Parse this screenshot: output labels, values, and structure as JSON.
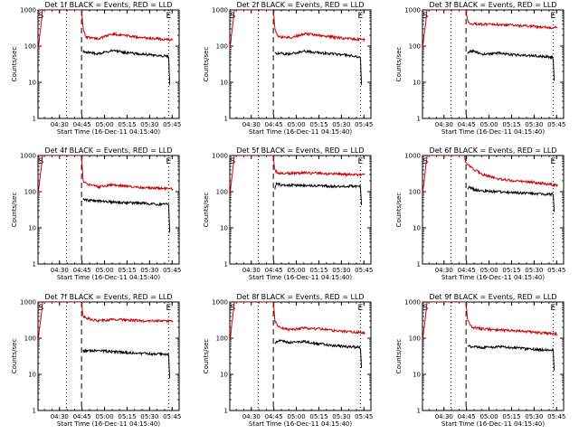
{
  "figure": {
    "colors": {
      "events": "#000000",
      "lld": "#cc0000",
      "axes": "#000000",
      "background": "#ffffff"
    },
    "y_tick_labels": [
      "1",
      "10",
      "100",
      "1000"
    ],
    "x_tick_labels": [
      "04:30",
      "04:45",
      "05:00",
      "05:15",
      "05:30",
      "05:45"
    ],
    "ylabel": "Counts/sec",
    "xlabel": "Start Time (16-Dec-11 04:15:40)"
  },
  "chart_data": [
    {
      "type": "line",
      "title": "Det 1f BLACK = Events, RED = LLD",
      "xlabel": "Start Time (16-Dec-11 04:15:40)",
      "ylabel": "Counts/sec",
      "x_unit": "minutes after 04:15:40",
      "xlim": [
        0,
        94
      ],
      "ylim": [
        1,
        1000
      ],
      "y_scale": "log",
      "markers": {
        "S": 2,
        "E": 87
      },
      "vlines": [
        {
          "x": 19,
          "style": "dotted"
        },
        {
          "x": 29,
          "style": "dashed"
        },
        {
          "x": 87,
          "style": "dotted"
        }
      ],
      "series": [
        {
          "color": "#cc0000",
          "points": [
            [
              0,
              80
            ],
            [
              2,
              400
            ],
            [
              3,
              1000
            ],
            [
              29,
              1000
            ],
            [
              30,
              300
            ],
            [
              32,
              180
            ],
            [
              40,
              160
            ],
            [
              50,
              220
            ],
            [
              60,
              190
            ],
            [
              70,
              170
            ],
            [
              80,
              160
            ],
            [
              90,
              150
            ]
          ]
        },
        {
          "color": "#000000",
          "points": [
            [
              30,
              70
            ],
            [
              40,
              62
            ],
            [
              50,
              75
            ],
            [
              60,
              65
            ],
            [
              70,
              60
            ],
            [
              80,
              55
            ],
            [
              87,
              52
            ],
            [
              88,
              5
            ]
          ]
        }
      ]
    },
    {
      "type": "line",
      "title": "Det 2f BLACK = Events, RED = LLD",
      "xlabel": "Start Time (16-Dec-11 04:15:40)",
      "ylabel": "Counts/sec",
      "x_unit": "minutes after 04:15:40",
      "xlim": [
        0,
        94
      ],
      "ylim": [
        1,
        1000
      ],
      "y_scale": "log",
      "markers": {
        "S": 2,
        "E": 87
      },
      "vlines": [
        {
          "x": 19,
          "style": "dotted"
        },
        {
          "x": 29,
          "style": "dashed"
        },
        {
          "x": 87,
          "style": "dotted"
        }
      ],
      "series": [
        {
          "color": "#cc0000",
          "points": [
            [
              0,
              80
            ],
            [
              2,
              400
            ],
            [
              3,
              1000
            ],
            [
              29,
              1000
            ],
            [
              30,
              300
            ],
            [
              32,
              180
            ],
            [
              40,
              170
            ],
            [
              50,
              220
            ],
            [
              60,
              200
            ],
            [
              70,
              175
            ],
            [
              80,
              160
            ],
            [
              90,
              150
            ]
          ]
        },
        {
          "color": "#000000",
          "points": [
            [
              30,
              65
            ],
            [
              40,
              60
            ],
            [
              50,
              72
            ],
            [
              60,
              65
            ],
            [
              70,
              60
            ],
            [
              80,
              55
            ],
            [
              87,
              50
            ],
            [
              88,
              5
            ]
          ]
        }
      ]
    },
    {
      "type": "line",
      "title": "Det 3f BLACK = Events, RED = LLD",
      "xlabel": "Start Time (16-Dec-11 04:15:40)",
      "ylabel": "Counts/sec",
      "x_unit": "minutes after 04:15:40",
      "xlim": [
        0,
        94
      ],
      "ylim": [
        1,
        1000
      ],
      "y_scale": "log",
      "markers": {
        "S": 2,
        "E": 87
      },
      "vlines": [
        {
          "x": 19,
          "style": "dotted"
        },
        {
          "x": 29,
          "style": "dashed"
        },
        {
          "x": 87,
          "style": "dotted"
        }
      ],
      "series": [
        {
          "color": "#cc0000",
          "points": [
            [
              0,
              80
            ],
            [
              2,
              400
            ],
            [
              3,
              1000
            ],
            [
              29,
              1000
            ],
            [
              30,
              500
            ],
            [
              32,
              420
            ],
            [
              40,
              400
            ],
            [
              50,
              400
            ],
            [
              60,
              380
            ],
            [
              70,
              360
            ],
            [
              80,
              340
            ],
            [
              90,
              320
            ]
          ]
        },
        {
          "color": "#000000",
          "points": [
            [
              30,
              60
            ],
            [
              32,
              75
            ],
            [
              40,
              60
            ],
            [
              50,
              65
            ],
            [
              60,
              58
            ],
            [
              70,
              55
            ],
            [
              80,
              52
            ],
            [
              87,
              50
            ],
            [
              88,
              6
            ]
          ]
        }
      ]
    },
    {
      "type": "line",
      "title": "Det 4f BLACK = Events, RED = LLD",
      "xlabel": "Start Time (16-Dec-11 04:15:40)",
      "ylabel": "Counts/sec",
      "x_unit": "minutes after 04:15:40",
      "xlim": [
        0,
        94
      ],
      "ylim": [
        1,
        1000
      ],
      "y_scale": "log",
      "markers": {
        "S": 2,
        "E": 87
      },
      "vlines": [
        {
          "x": 19,
          "style": "dotted"
        },
        {
          "x": 29,
          "style": "dashed"
        },
        {
          "x": 87,
          "style": "dotted"
        }
      ],
      "series": [
        {
          "color": "#cc0000",
          "points": [
            [
              0,
              80
            ],
            [
              2,
              400
            ],
            [
              3,
              1000
            ],
            [
              29,
              1000
            ],
            [
              30,
              200
            ],
            [
              33,
              160
            ],
            [
              40,
              135
            ],
            [
              50,
              155
            ],
            [
              60,
              140
            ],
            [
              70,
              130
            ],
            [
              80,
              125
            ],
            [
              90,
              120
            ]
          ]
        },
        {
          "color": "#000000",
          "points": [
            [
              30,
              60
            ],
            [
              40,
              55
            ],
            [
              50,
              52
            ],
            [
              60,
              50
            ],
            [
              70,
              48
            ],
            [
              80,
              45
            ],
            [
              87,
              45
            ],
            [
              88,
              4
            ]
          ]
        }
      ]
    },
    {
      "type": "line",
      "title": "Det 5f BLACK = Events, RED = LLD",
      "xlabel": "Start Time (16-Dec-11 04:15:40)",
      "ylabel": "Counts/sec",
      "x_unit": "minutes after 04:15:40",
      "xlim": [
        0,
        94
      ],
      "ylim": [
        1,
        1000
      ],
      "y_scale": "log",
      "markers": {
        "S": 2,
        "E": 87
      },
      "vlines": [
        {
          "x": 19,
          "style": "dotted"
        },
        {
          "x": 29,
          "style": "dashed"
        },
        {
          "x": 87,
          "style": "dotted"
        }
      ],
      "series": [
        {
          "color": "#cc0000",
          "points": [
            [
              0,
              80
            ],
            [
              2,
              400
            ],
            [
              3,
              1000
            ],
            [
              29,
              1000
            ],
            [
              30,
              400
            ],
            [
              32,
              330
            ],
            [
              40,
              320
            ],
            [
              50,
              330
            ],
            [
              60,
              320
            ],
            [
              70,
              310
            ],
            [
              80,
              300
            ],
            [
              90,
              290
            ]
          ]
        },
        {
          "color": "#000000",
          "points": [
            [
              30,
              120
            ],
            [
              31,
              170
            ],
            [
              35,
              150
            ],
            [
              50,
              150
            ],
            [
              60,
              145
            ],
            [
              70,
              140
            ],
            [
              80,
              140
            ],
            [
              87,
              140
            ],
            [
              88,
              30
            ]
          ]
        }
      ]
    },
    {
      "type": "line",
      "title": "Det 6f BLACK = Events, RED = LLD",
      "xlabel": "Start Time (16-Dec-11 04:15:40)",
      "ylabel": "Counts/sec",
      "x_unit": "minutes after 04:15:40",
      "xlim": [
        0,
        94
      ],
      "ylim": [
        1,
        1000
      ],
      "y_scale": "log",
      "markers": {
        "S": 2,
        "E": 87
      },
      "vlines": [
        {
          "x": 19,
          "style": "dotted"
        },
        {
          "x": 29,
          "style": "dashed"
        },
        {
          "x": 87,
          "style": "dotted"
        }
      ],
      "series": [
        {
          "color": "#cc0000",
          "points": [
            [
              0,
              80
            ],
            [
              2,
              400
            ],
            [
              3,
              1000
            ],
            [
              28,
              1000
            ],
            [
              29,
              600
            ],
            [
              35,
              400
            ],
            [
              40,
              300
            ],
            [
              50,
              230
            ],
            [
              60,
              200
            ],
            [
              70,
              190
            ],
            [
              80,
              170
            ],
            [
              90,
              150
            ]
          ]
        },
        {
          "color": "#000000",
          "points": [
            [
              30,
              110
            ],
            [
              31,
              140
            ],
            [
              35,
              110
            ],
            [
              50,
              100
            ],
            [
              60,
              95
            ],
            [
              70,
              90
            ],
            [
              80,
              85
            ],
            [
              87,
              85
            ],
            [
              88,
              20
            ]
          ]
        }
      ]
    },
    {
      "type": "line",
      "title": "Det 7f BLACK = Events, RED = LLD",
      "xlabel": "Start Time (16-Dec-11 04:15:40)",
      "ylabel": "Counts/sec",
      "x_unit": "minutes after 04:15:40",
      "xlim": [
        0,
        94
      ],
      "ylim": [
        1,
        1000
      ],
      "y_scale": "log",
      "markers": {
        "S": 2,
        "E": 87
      },
      "vlines": [
        {
          "x": 19,
          "style": "dotted"
        },
        {
          "x": 29,
          "style": "dashed"
        },
        {
          "x": 87,
          "style": "dotted"
        }
      ],
      "series": [
        {
          "color": "#cc0000",
          "points": [
            [
              0,
              80
            ],
            [
              2,
              400
            ],
            [
              3,
              1000
            ],
            [
              29,
              1000
            ],
            [
              30,
              400
            ],
            [
              35,
              330
            ],
            [
              40,
              300
            ],
            [
              50,
              330
            ],
            [
              60,
              320
            ],
            [
              70,
              300
            ],
            [
              80,
              300
            ],
            [
              90,
              300
            ]
          ]
        },
        {
          "color": "#000000",
          "points": [
            [
              30,
              45
            ],
            [
              40,
              45
            ],
            [
              50,
              42
            ],
            [
              60,
              40
            ],
            [
              70,
              38
            ],
            [
              80,
              36
            ],
            [
              87,
              36
            ],
            [
              88,
              5
            ]
          ]
        }
      ]
    },
    {
      "type": "line",
      "title": "Det 8f BLACK = Events, RED = LLD",
      "xlabel": "Start Time (16-Dec-11 04:15:40)",
      "ylabel": "Counts/sec",
      "x_unit": "minutes after 04:15:40",
      "xlim": [
        0,
        94
      ],
      "ylim": [
        1,
        1000
      ],
      "y_scale": "log",
      "markers": {
        "S": 2,
        "E": 87
      },
      "vlines": [
        {
          "x": 19,
          "style": "dotted"
        },
        {
          "x": 29,
          "style": "dashed"
        },
        {
          "x": 87,
          "style": "dotted"
        }
      ],
      "series": [
        {
          "color": "#cc0000",
          "points": [
            [
              0,
              80
            ],
            [
              2,
              400
            ],
            [
              3,
              1000
            ],
            [
              29,
              1000
            ],
            [
              30,
              300
            ],
            [
              33,
              200
            ],
            [
              40,
              170
            ],
            [
              50,
              190
            ],
            [
              60,
              180
            ],
            [
              70,
              160
            ],
            [
              80,
              150
            ],
            [
              90,
              140
            ]
          ]
        },
        {
          "color": "#000000",
          "points": [
            [
              30,
              70
            ],
            [
              33,
              90
            ],
            [
              40,
              75
            ],
            [
              50,
              80
            ],
            [
              60,
              70
            ],
            [
              70,
              62
            ],
            [
              80,
              58
            ],
            [
              87,
              55
            ],
            [
              88,
              10
            ]
          ]
        }
      ]
    },
    {
      "type": "line",
      "title": "Det 9f BLACK = Events, RED = LLD",
      "xlabel": "Start Time (16-Dec-11 04:15:40)",
      "ylabel": "Counts/sec",
      "x_unit": "minutes after 04:15:40",
      "xlim": [
        0,
        94
      ],
      "ylim": [
        1,
        1000
      ],
      "y_scale": "log",
      "markers": {
        "S": 2,
        "E": 87
      },
      "vlines": [
        {
          "x": 19,
          "style": "dotted"
        },
        {
          "x": 29,
          "style": "dashed"
        },
        {
          "x": 87,
          "style": "dotted"
        }
      ],
      "series": [
        {
          "color": "#cc0000",
          "points": [
            [
              0,
              80
            ],
            [
              2,
              400
            ],
            [
              3,
              1000
            ],
            [
              29,
              1000
            ],
            [
              30,
              300
            ],
            [
              33,
              200
            ],
            [
              40,
              180
            ],
            [
              50,
              170
            ],
            [
              60,
              160
            ],
            [
              70,
              150
            ],
            [
              80,
              140
            ],
            [
              90,
              130
            ]
          ]
        },
        {
          "color": "#000000",
          "points": [
            [
              30,
              60
            ],
            [
              40,
              55
            ],
            [
              50,
              58
            ],
            [
              60,
              55
            ],
            [
              70,
              50
            ],
            [
              80,
              48
            ],
            [
              87,
              48
            ],
            [
              88,
              8
            ]
          ]
        }
      ]
    }
  ]
}
